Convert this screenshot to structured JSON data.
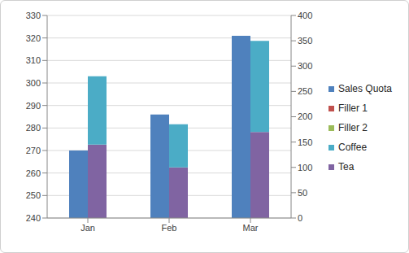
{
  "chart_data": {
    "type": "bar",
    "categories": [
      "Jan",
      "Feb",
      "Mar"
    ],
    "series": [
      {
        "name": "Sales Quota",
        "color": "#4f81bd",
        "values": [
          270,
          286,
          321
        ]
      },
      {
        "name": "Filler 1",
        "color": "#c0504d",
        "values": [
          null,
          null,
          null
        ]
      },
      {
        "name": "Filler 2",
        "color": "#9bbb59",
        "values": [
          null,
          null,
          null
        ],
        "axis": "y2"
      },
      {
        "name": "Coffee",
        "color": "#4bacc6",
        "values": [
          135,
          85,
          180
        ],
        "axis": "y2"
      },
      {
        "name": "Tea",
        "color": "#8064a2",
        "values": [
          145,
          100,
          170
        ],
        "axis": "y2"
      }
    ],
    "ylim": [
      240,
      330
    ],
    "yticks": [
      240,
      250,
      260,
      270,
      280,
      290,
      300,
      310,
      320,
      330
    ],
    "y2lim": [
      0,
      400
    ],
    "y2ticks": [
      0,
      50,
      100,
      150,
      200,
      250,
      300,
      350,
      400
    ],
    "grid": true,
    "stacked": true,
    "legend": "right"
  }
}
